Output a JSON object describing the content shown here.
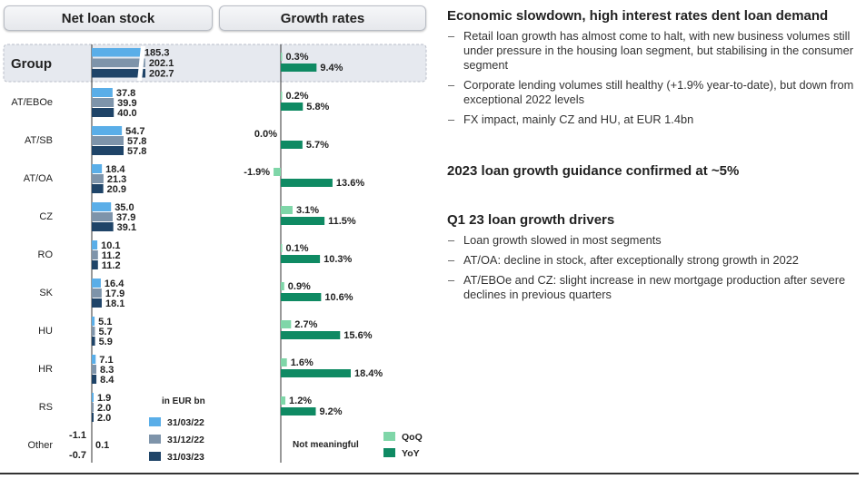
{
  "headers": {
    "left": "Net loan stock",
    "middle": "Growth rates"
  },
  "chart_data": {
    "type": "bar",
    "unit_label": "in EUR bn",
    "stock_legend": [
      {
        "label": "31/03/22",
        "color": "#5aaee8"
      },
      {
        "label": "31/12/22",
        "color": "#7e94aa"
      },
      {
        "label": "31/03/23",
        "color": "#1f4468"
      }
    ],
    "growth_legend": [
      {
        "label": "QoQ",
        "color": "#7fd6a8"
      },
      {
        "label": "YoY",
        "color": "#0f8a63"
      }
    ],
    "not_meaningful_label": "Not meaningful",
    "rows": [
      {
        "label": "Group",
        "stock": [
          185.3,
          202.1,
          202.7
        ],
        "stock_labels": [
          "185.3",
          "202.1",
          "202.7"
        ],
        "qoq": 0.3,
        "qoq_label": "0.3%",
        "yoy": 9.4,
        "yoy_label": "9.4%"
      },
      {
        "label": "AT/EBOe",
        "stock": [
          37.8,
          39.9,
          40.0
        ],
        "stock_labels": [
          "37.8",
          "39.9",
          "40.0"
        ],
        "qoq": 0.2,
        "qoq_label": "0.2%",
        "yoy": 5.8,
        "yoy_label": "5.8%"
      },
      {
        "label": "AT/SB",
        "stock": [
          54.7,
          57.8,
          57.8
        ],
        "stock_labels": [
          "54.7",
          "57.8",
          "57.8"
        ],
        "qoq": 0.0,
        "qoq_label": "0.0%",
        "yoy": 5.7,
        "yoy_label": "5.7%"
      },
      {
        "label": "AT/OA",
        "stock": [
          18.4,
          21.3,
          20.9
        ],
        "stock_labels": [
          "18.4",
          "21.3",
          "20.9"
        ],
        "qoq": -1.9,
        "qoq_label": "-1.9%",
        "yoy": 13.6,
        "yoy_label": "13.6%"
      },
      {
        "label": "CZ",
        "stock": [
          35.0,
          37.9,
          39.1
        ],
        "stock_labels": [
          "35.0",
          "37.9",
          "39.1"
        ],
        "qoq": 3.1,
        "qoq_label": "3.1%",
        "yoy": 11.5,
        "yoy_label": "11.5%"
      },
      {
        "label": "RO",
        "stock": [
          10.1,
          11.2,
          11.2
        ],
        "stock_labels": [
          "10.1",
          "11.2",
          "11.2"
        ],
        "qoq": 0.1,
        "qoq_label": "0.1%",
        "yoy": 10.3,
        "yoy_label": "10.3%"
      },
      {
        "label": "SK",
        "stock": [
          16.4,
          17.9,
          18.1
        ],
        "stock_labels": [
          "16.4",
          "17.9",
          "18.1"
        ],
        "qoq": 0.9,
        "qoq_label": "0.9%",
        "yoy": 10.6,
        "yoy_label": "10.6%"
      },
      {
        "label": "HU",
        "stock": [
          5.1,
          5.7,
          5.9
        ],
        "stock_labels": [
          "5.1",
          "5.7",
          "5.9"
        ],
        "qoq": 2.7,
        "qoq_label": "2.7%",
        "yoy": 15.6,
        "yoy_label": "15.6%"
      },
      {
        "label": "HR",
        "stock": [
          7.1,
          8.3,
          8.4
        ],
        "stock_labels": [
          "7.1",
          "8.3",
          "8.4"
        ],
        "qoq": 1.6,
        "qoq_label": "1.6%",
        "yoy": 18.4,
        "yoy_label": "18.4%"
      },
      {
        "label": "RS",
        "stock": [
          1.9,
          2.0,
          2.0
        ],
        "stock_labels": [
          "1.9",
          "2.0",
          "2.0"
        ],
        "qoq": 1.2,
        "qoq_label": "1.2%",
        "yoy": 9.2,
        "yoy_label": "9.2%"
      },
      {
        "label": "Other",
        "stock": [
          -1.1,
          0.1,
          -0.7
        ],
        "stock_labels": [
          "-1.1",
          "0.1",
          "-0.7"
        ],
        "qoq": null,
        "qoq_label": "",
        "yoy": null,
        "yoy_label": ""
      }
    ]
  },
  "right_panel": {
    "section1": {
      "title": "Economic slowdown, high interest rates dent loan demand",
      "bullets": [
        "Retail loan growth has almost come to halt, with new business volumes still under pressure in the housing loan segment, but stabilising in the consumer segment",
        "Corporate lending volumes still healthy (+1.9% year-to-date), but down from exceptional 2022 levels",
        "FX impact, mainly CZ and HU, at EUR 1.4bn"
      ]
    },
    "section2": {
      "title": "2023 loan growth guidance confirmed at ~5%"
    },
    "section3": {
      "title": "Q1 23 loan growth drivers",
      "bullets": [
        "Loan growth slowed in most segments",
        "AT/OA: decline in stock, after exceptionally strong growth in 2022",
        "AT/EBOe and CZ: slight increase in new mortgage production after severe declines in previous quarters"
      ]
    }
  }
}
